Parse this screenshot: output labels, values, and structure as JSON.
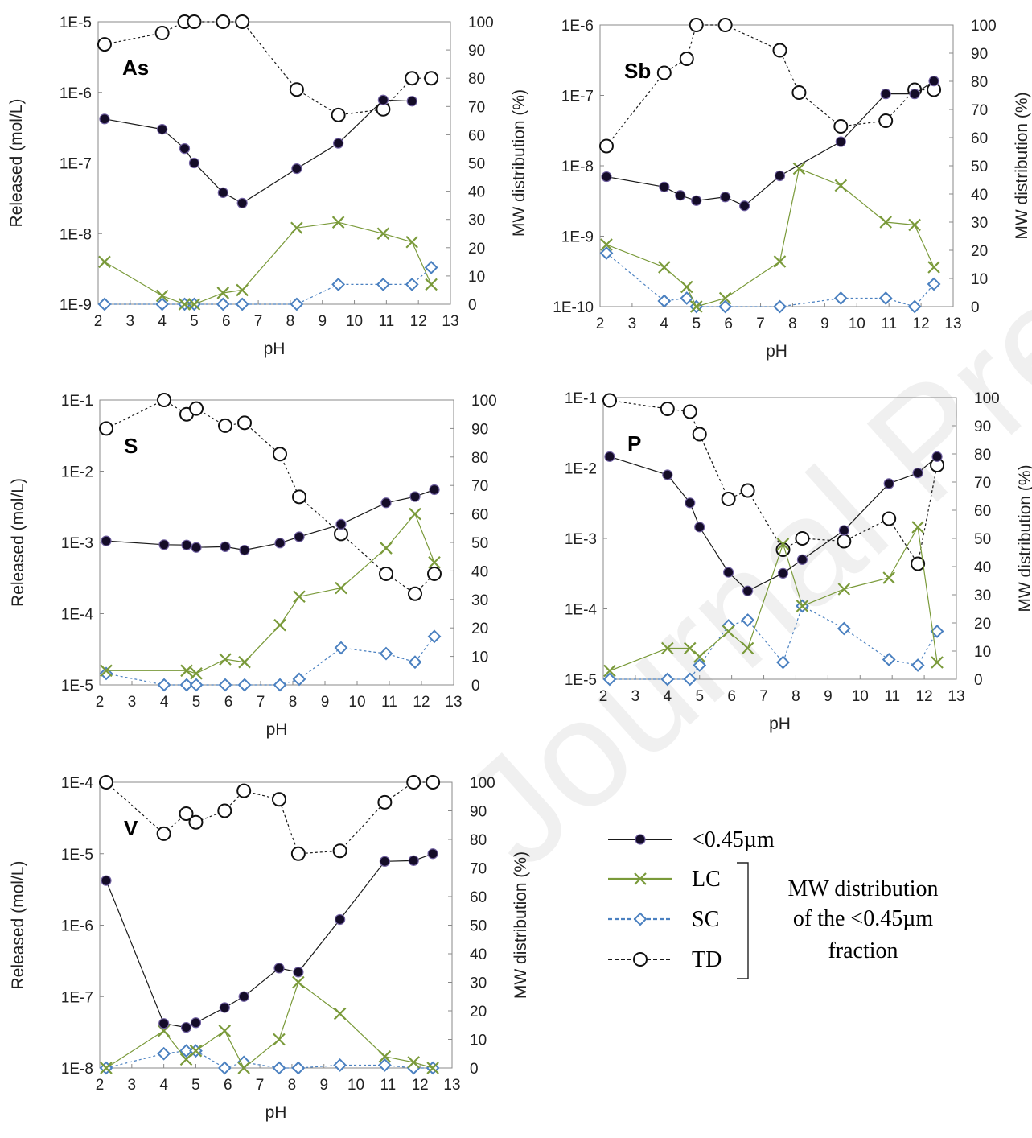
{
  "watermark": "Journal Pre-proofs",
  "chart_data": [
    {
      "type": "line",
      "element": "As",
      "xlabel": "pH",
      "ylabel": "Released (mol/L)",
      "y2label": "MW distribution (%)",
      "xlim": [
        2,
        13
      ],
      "xticks": [
        "2",
        "3",
        "4",
        "5",
        "6",
        "7",
        "8",
        "9",
        "10",
        "11",
        "12",
        "13"
      ],
      "ylim_log": [
        1e-09,
        1e-05
      ],
      "yticks": [
        "1E-9",
        "1E-8",
        "1E-7",
        "1E-6",
        "1E-5"
      ],
      "y2lim": [
        0,
        100
      ],
      "y2ticks": [
        "0",
        "10",
        "20",
        "30",
        "40",
        "50",
        "60",
        "70",
        "80",
        "90",
        "100"
      ],
      "series": [
        {
          "name": "<0.45µm",
          "axis": "left",
          "x": [
            2.2,
            4.0,
            4.7,
            5.0,
            5.9,
            6.5,
            8.2,
            9.5,
            10.9,
            11.8
          ],
          "values": [
            4.2e-07,
            3e-07,
            1.6e-07,
            1e-07,
            3.8e-08,
            2.7e-08,
            8.3e-08,
            1.9e-07,
            7.8e-07,
            7.5e-07
          ]
        },
        {
          "name": "LC",
          "axis": "right",
          "x": [
            2.2,
            4.0,
            4.7,
            5.0,
            5.9,
            6.5,
            8.2,
            9.5,
            10.9,
            11.8,
            12.4
          ],
          "values": [
            15,
            3,
            0,
            0,
            4,
            5,
            27,
            29,
            25,
            22,
            7
          ]
        },
        {
          "name": "SC",
          "axis": "right",
          "x": [
            2.2,
            4.0,
            4.7,
            5.0,
            5.9,
            6.5,
            8.2,
            9.5,
            10.9,
            11.8,
            12.4
          ],
          "values": [
            0,
            0,
            0,
            0,
            0,
            0,
            0,
            7,
            7,
            7,
            13
          ]
        },
        {
          "name": "TD",
          "axis": "right",
          "x": [
            2.2,
            4.0,
            4.7,
            5.0,
            5.9,
            6.5,
            8.2,
            9.5,
            10.9,
            11.8,
            12.4
          ],
          "values": [
            92,
            96,
            100,
            100,
            100,
            100,
            76,
            67,
            69,
            80,
            80
          ]
        }
      ]
    },
    {
      "type": "line",
      "element": "Sb",
      "xlabel": "pH",
      "ylabel": "",
      "y2label": "MW distribution (%)",
      "xlim": [
        2,
        13
      ],
      "xticks": [
        "2",
        "3",
        "4",
        "5",
        "6",
        "7",
        "8",
        "9",
        "10",
        "11",
        "12",
        "13"
      ],
      "ylim_log": [
        1e-10,
        1e-06
      ],
      "yticks": [
        "1E-10",
        "1E-9",
        "1E-8",
        "1E-7",
        "1E-6"
      ],
      "y2lim": [
        0,
        100
      ],
      "y2ticks": [
        "0",
        "10",
        "20",
        "30",
        "40",
        "50",
        "60",
        "70",
        "80",
        "90",
        "100"
      ],
      "series": [
        {
          "name": "<0.45µm",
          "axis": "left",
          "x": [
            2.2,
            4.0,
            4.5,
            5.0,
            5.9,
            6.5,
            7.6,
            9.5,
            10.9,
            11.8,
            12.4
          ],
          "values": [
            7e-09,
            5e-09,
            3.8e-09,
            3.2e-09,
            3.6e-09,
            2.7e-09,
            7.2e-09,
            2.2e-08,
            1.05e-07,
            1.05e-07,
            1.6e-07
          ]
        },
        {
          "name": "LC",
          "axis": "right",
          "x": [
            2.2,
            4.0,
            4.7,
            5.0,
            5.9,
            7.6,
            8.2,
            9.5,
            10.9,
            11.8,
            12.4
          ],
          "values": [
            22,
            14,
            7,
            0,
            3,
            16,
            49,
            43,
            30,
            29,
            14
          ]
        },
        {
          "name": "SC",
          "axis": "right",
          "x": [
            2.2,
            4.0,
            4.7,
            5.0,
            5.9,
            7.6,
            9.5,
            10.9,
            11.8,
            12.4
          ],
          "values": [
            19,
            2,
            3,
            0,
            0,
            0,
            3,
            3,
            0,
            8
          ]
        },
        {
          "name": "TD",
          "axis": "right",
          "x": [
            2.2,
            4.0,
            4.7,
            5.0,
            5.9,
            7.6,
            8.2,
            9.5,
            10.9,
            11.8,
            12.4
          ],
          "values": [
            57,
            83,
            88,
            100,
            100,
            91,
            76,
            64,
            66,
            77,
            77
          ]
        }
      ]
    },
    {
      "type": "line",
      "element": "S",
      "xlabel": "pH",
      "ylabel": "Released (mol/L)",
      "y2label": "",
      "xlim": [
        2,
        13
      ],
      "xticks": [
        "2",
        "3",
        "4",
        "5",
        "6",
        "7",
        "8",
        "9",
        "10",
        "11",
        "12",
        "13"
      ],
      "ylim_log": [
        1e-05,
        0.1
      ],
      "yticks": [
        "1E-5",
        "1E-4",
        "1E-3",
        "1E-2",
        "1E-1"
      ],
      "y2lim": [
        0,
        100
      ],
      "y2ticks": [
        "0",
        "10",
        "20",
        "30",
        "40",
        "50",
        "60",
        "70",
        "80",
        "90",
        "100"
      ],
      "series": [
        {
          "name": "<0.45µm",
          "axis": "left",
          "x": [
            2.2,
            4.0,
            4.7,
            5.0,
            5.9,
            6.5,
            7.6,
            8.2,
            9.5,
            10.9,
            11.8,
            12.4
          ],
          "values": [
            0.00105,
            0.00093,
            0.00092,
            0.00085,
            0.00087,
            0.00078,
            0.00098,
            0.0012,
            0.0018,
            0.0036,
            0.0044,
            0.0055
          ]
        },
        {
          "name": "LC",
          "axis": "right",
          "x": [
            2.2,
            4.7,
            5.0,
            5.9,
            6.5,
            7.6,
            8.2,
            9.5,
            10.9,
            11.8,
            12.4
          ],
          "values": [
            5,
            5,
            4,
            9,
            8,
            21,
            31,
            34,
            48,
            60,
            43
          ]
        },
        {
          "name": "SC",
          "axis": "right",
          "x": [
            2.2,
            4.0,
            4.7,
            5.0,
            5.9,
            6.5,
            7.6,
            8.2,
            9.5,
            10.9,
            11.8,
            12.4
          ],
          "values": [
            4,
            0,
            0,
            0,
            0,
            0,
            0,
            2,
            13,
            11,
            8,
            17
          ]
        },
        {
          "name": "TD",
          "axis": "right",
          "x": [
            2.2,
            4.0,
            4.7,
            5.0,
            5.9,
            6.5,
            7.6,
            8.2,
            9.5,
            10.9,
            11.8,
            12.4
          ],
          "values": [
            90,
            100,
            95,
            97,
            91,
            92,
            81,
            66,
            53,
            39,
            32,
            39
          ]
        }
      ]
    },
    {
      "type": "line",
      "element": "P",
      "xlabel": "pH",
      "ylabel": "",
      "y2label": "MW distribution (%)",
      "xlim": [
        2,
        13
      ],
      "xticks": [
        "2",
        "3",
        "4",
        "5",
        "6",
        "7",
        "8",
        "9",
        "10",
        "11",
        "12",
        "13"
      ],
      "ylim_log": [
        1e-05,
        0.1
      ],
      "yticks": [
        "1E-5",
        "1E-4",
        "1E-3",
        "1E-2",
        "1E-1"
      ],
      "y2lim": [
        0,
        100
      ],
      "y2ticks": [
        "0",
        "10",
        "20",
        "30",
        "40",
        "50",
        "60",
        "70",
        "80",
        "90",
        "100"
      ],
      "series": [
        {
          "name": "<0.45µm",
          "axis": "left",
          "x": [
            2.2,
            4.0,
            4.7,
            5.0,
            5.9,
            6.5,
            7.6,
            8.2,
            9.5,
            10.9,
            11.8,
            12.4
          ],
          "values": [
            0.0145,
            0.008,
            0.0032,
            0.00145,
            0.00033,
            0.00018,
            0.00032,
            0.0005,
            0.0013,
            0.006,
            0.0085,
            0.0145
          ]
        },
        {
          "name": "LC",
          "axis": "right",
          "x": [
            2.2,
            4.0,
            4.7,
            5.0,
            5.9,
            6.5,
            7.6,
            8.2,
            9.5,
            10.9,
            11.8,
            12.4
          ],
          "values": [
            3,
            11,
            11,
            8,
            17,
            11,
            48,
            26,
            32,
            36,
            54,
            6
          ]
        },
        {
          "name": "SC",
          "axis": "right",
          "x": [
            2.2,
            4.0,
            4.7,
            5.0,
            5.9,
            6.5,
            7.6,
            8.2,
            9.5,
            10.9,
            11.8,
            12.4
          ],
          "values": [
            0,
            0,
            0,
            5,
            19,
            21,
            6,
            26,
            18,
            7,
            5,
            17
          ]
        },
        {
          "name": "TD",
          "axis": "right",
          "x": [
            2.2,
            4.0,
            4.7,
            5.0,
            5.9,
            6.5,
            7.6,
            8.2,
            9.5,
            10.9,
            11.8,
            12.4
          ],
          "values": [
            99,
            96,
            95,
            87,
            64,
            67,
            46,
            50,
            49,
            57,
            41,
            76
          ]
        }
      ]
    },
    {
      "type": "line",
      "element": "V",
      "xlabel": "pH",
      "ylabel": "Released (mol/L)",
      "y2label": "MW distribution (%)",
      "xlim": [
        2,
        13
      ],
      "xticks": [
        "2",
        "3",
        "4",
        "5",
        "6",
        "7",
        "8",
        "9",
        "10",
        "11",
        "12",
        "13"
      ],
      "ylim_log": [
        1e-08,
        0.0001
      ],
      "yticks": [
        "1E-8",
        "1E-7",
        "1E-6",
        "1E-5",
        "1E-4"
      ],
      "y2lim": [
        0,
        100
      ],
      "y2ticks": [
        "0",
        "10",
        "20",
        "30",
        "40",
        "50",
        "60",
        "70",
        "80",
        "90",
        "100"
      ],
      "series": [
        {
          "name": "<0.45µm",
          "axis": "left",
          "x": [
            2.2,
            4.0,
            4.7,
            5.0,
            5.9,
            6.5,
            7.6,
            8.2,
            9.5,
            10.9,
            11.8,
            12.4
          ],
          "values": [
            4.2e-06,
            4.2e-08,
            3.7e-08,
            4.3e-08,
            7e-08,
            1e-07,
            2.5e-07,
            2.2e-07,
            1.2e-06,
            7.8e-06,
            8e-06,
            1e-05
          ]
        },
        {
          "name": "LC",
          "axis": "right",
          "x": [
            2.2,
            4.0,
            4.7,
            5.0,
            5.9,
            6.5,
            7.6,
            8.2,
            9.5,
            10.9,
            11.8,
            12.4
          ],
          "values": [
            0,
            13,
            3,
            6,
            13,
            0,
            10,
            30,
            19,
            4,
            2,
            0
          ]
        },
        {
          "name": "SC",
          "axis": "right",
          "x": [
            2.2,
            4.0,
            4.7,
            5.0,
            5.9,
            6.5,
            7.6,
            8.2,
            9.5,
            10.9,
            11.8,
            12.4
          ],
          "values": [
            0,
            5,
            6,
            6,
            0,
            2,
            0,
            0,
            1,
            1,
            0,
            0
          ]
        },
        {
          "name": "TD",
          "axis": "right",
          "x": [
            2.2,
            4.0,
            4.7,
            5.0,
            5.9,
            6.5,
            7.6,
            8.2,
            9.5,
            10.9,
            11.8,
            12.4
          ],
          "values": [
            100,
            82,
            89,
            86,
            90,
            97,
            94,
            75,
            76,
            93,
            100,
            100
          ]
        }
      ]
    }
  ],
  "legend": {
    "items": [
      {
        "key": "<0.45µm",
        "label": "<0.45µm"
      },
      {
        "key": "LC",
        "label": "LC"
      },
      {
        "key": "SC",
        "label": "SC"
      },
      {
        "key": "TD",
        "label": "TD"
      }
    ],
    "note_lines": [
      "MW distribution",
      "of the <0.45µm",
      "fraction"
    ]
  },
  "colors": {
    "lt045": "#1a1a1a",
    "lt045_fill": "#140c28",
    "LC": "#7a9a3a",
    "SC": "#4a80c0",
    "TD": "#1a1a1a",
    "axis": "#888888"
  }
}
